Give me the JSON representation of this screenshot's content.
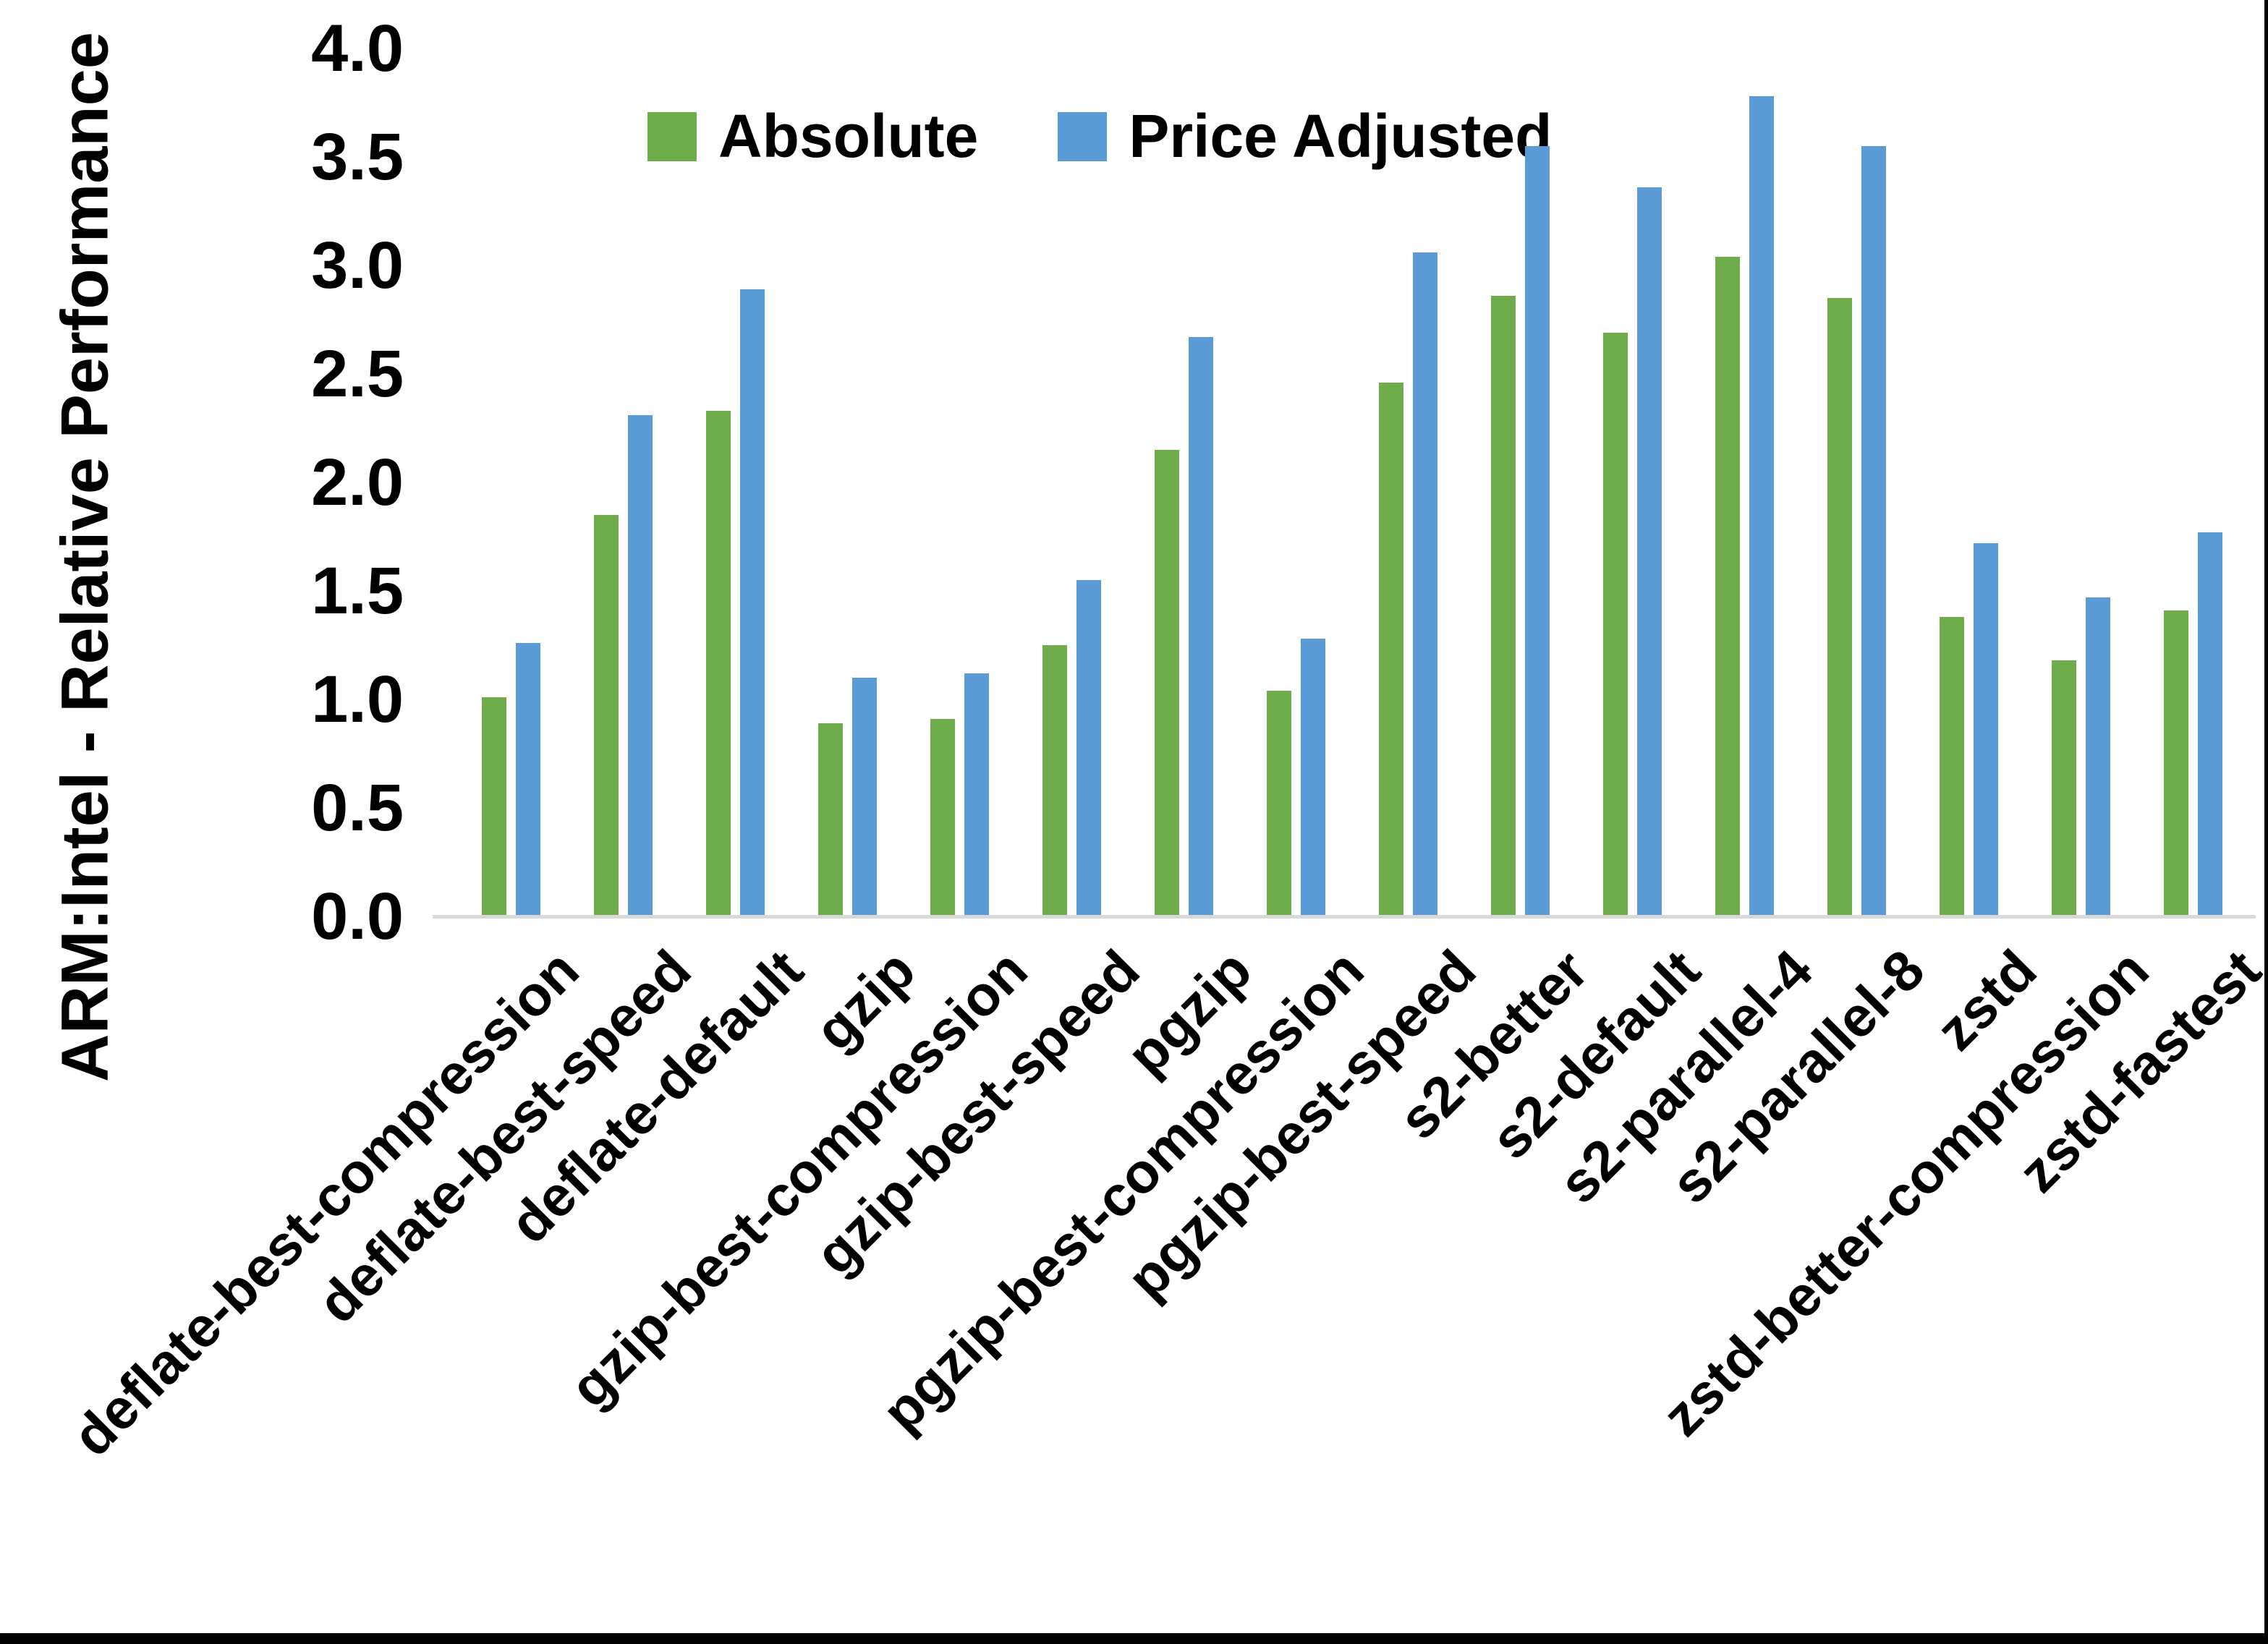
{
  "chart": {
    "y_axis_title": "ARM:Intel - Relative Performance"
  },
  "chart_data": {
    "type": "bar",
    "title": "",
    "xlabel": "",
    "ylabel": "ARM:Intel - Relative Performance",
    "ylim": [
      0,
      4
    ],
    "ytick_labels": [
      "4.0",
      "3.5",
      "3.0",
      "2.5",
      "2.0",
      "1.5",
      "1.0",
      "0.5",
      "0.0"
    ],
    "grid": false,
    "legend_position": "top-center",
    "axis_line_color": "#d9d9d9",
    "categories": [
      "deflate-best-compression",
      "deflate-best-speed",
      "deflate-default",
      "gzip",
      "gzip-best-compression",
      "gzip-best-speed",
      "pgzip",
      "pgzip-best-compression",
      "pgzip-best-speed",
      "s2-better",
      "s2-default",
      "s2-parallel-4",
      "s2-parallel-8",
      "zstd",
      "zstd-better-compression",
      "zstd-fastest"
    ],
    "series": [
      {
        "name": "Absolute",
        "color": "#6FAC4B",
        "values": [
          1.01,
          1.85,
          2.33,
          0.89,
          0.91,
          1.25,
          2.15,
          1.04,
          2.46,
          2.86,
          2.69,
          3.04,
          2.85,
          1.38,
          1.18,
          1.41
        ]
      },
      {
        "name": "Price Adjusted",
        "color": "#5B9BD5",
        "values": [
          1.26,
          2.31,
          2.89,
          1.1,
          1.12,
          1.55,
          2.67,
          1.28,
          3.06,
          3.55,
          3.36,
          3.78,
          3.55,
          1.72,
          1.47,
          1.77
        ]
      }
    ]
  }
}
